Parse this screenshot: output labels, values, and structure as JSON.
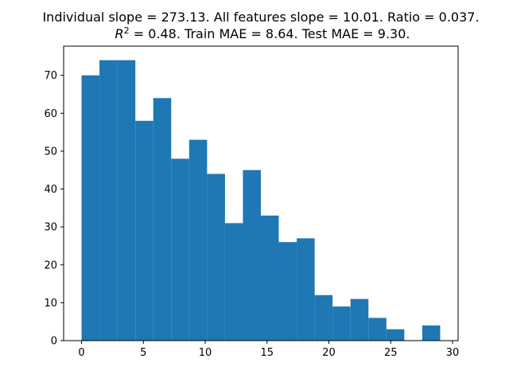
{
  "chart_data": {
    "type": "bar",
    "subtype": "histogram",
    "title_line1": "Individual slope = 273.13. All features slope = 10.01. Ratio = 0.037.",
    "title_line2": "R² = 0.48. Train MAE = 8.64. Test MAE = 9.30.",
    "title_r2_symbol": "R",
    "title_r2_superscript": "2",
    "title_r2_rest": " = 0.48. Train MAE = 8.64. Test MAE = 9.30.",
    "xlabel": "",
    "ylabel": "",
    "xlim": [
      -1.45,
      30.45
    ],
    "ylim": [
      0,
      77.7
    ],
    "x_ticks": [
      0,
      5,
      10,
      15,
      20,
      25,
      30
    ],
    "y_ticks": [
      0,
      10,
      20,
      30,
      40,
      50,
      60,
      70
    ],
    "bar_color": "#1f77b4",
    "grid": false,
    "legend": "none",
    "bins": [
      {
        "x0": 0.0,
        "x1": 1.45,
        "count": 70
      },
      {
        "x0": 1.45,
        "x1": 2.9,
        "count": 74
      },
      {
        "x0": 2.9,
        "x1": 4.35,
        "count": 74
      },
      {
        "x0": 4.35,
        "x1": 5.8,
        "count": 58
      },
      {
        "x0": 5.8,
        "x1": 7.25,
        "count": 64
      },
      {
        "x0": 7.25,
        "x1": 8.7,
        "count": 48
      },
      {
        "x0": 8.7,
        "x1": 10.15,
        "count": 53
      },
      {
        "x0": 10.15,
        "x1": 11.6,
        "count": 44
      },
      {
        "x0": 11.6,
        "x1": 13.05,
        "count": 31
      },
      {
        "x0": 13.05,
        "x1": 14.5,
        "count": 45
      },
      {
        "x0": 14.5,
        "x1": 15.95,
        "count": 33
      },
      {
        "x0": 15.95,
        "x1": 17.4,
        "count": 26
      },
      {
        "x0": 17.4,
        "x1": 18.85,
        "count": 27
      },
      {
        "x0": 18.85,
        "x1": 20.3,
        "count": 12
      },
      {
        "x0": 20.3,
        "x1": 21.75,
        "count": 9
      },
      {
        "x0": 21.75,
        "x1": 23.2,
        "count": 11
      },
      {
        "x0": 23.2,
        "x1": 24.65,
        "count": 6
      },
      {
        "x0": 24.65,
        "x1": 26.1,
        "count": 3
      },
      {
        "x0": 26.1,
        "x1": 27.55,
        "count": 0
      },
      {
        "x0": 27.55,
        "x1": 29.0,
        "count": 4
      }
    ]
  }
}
